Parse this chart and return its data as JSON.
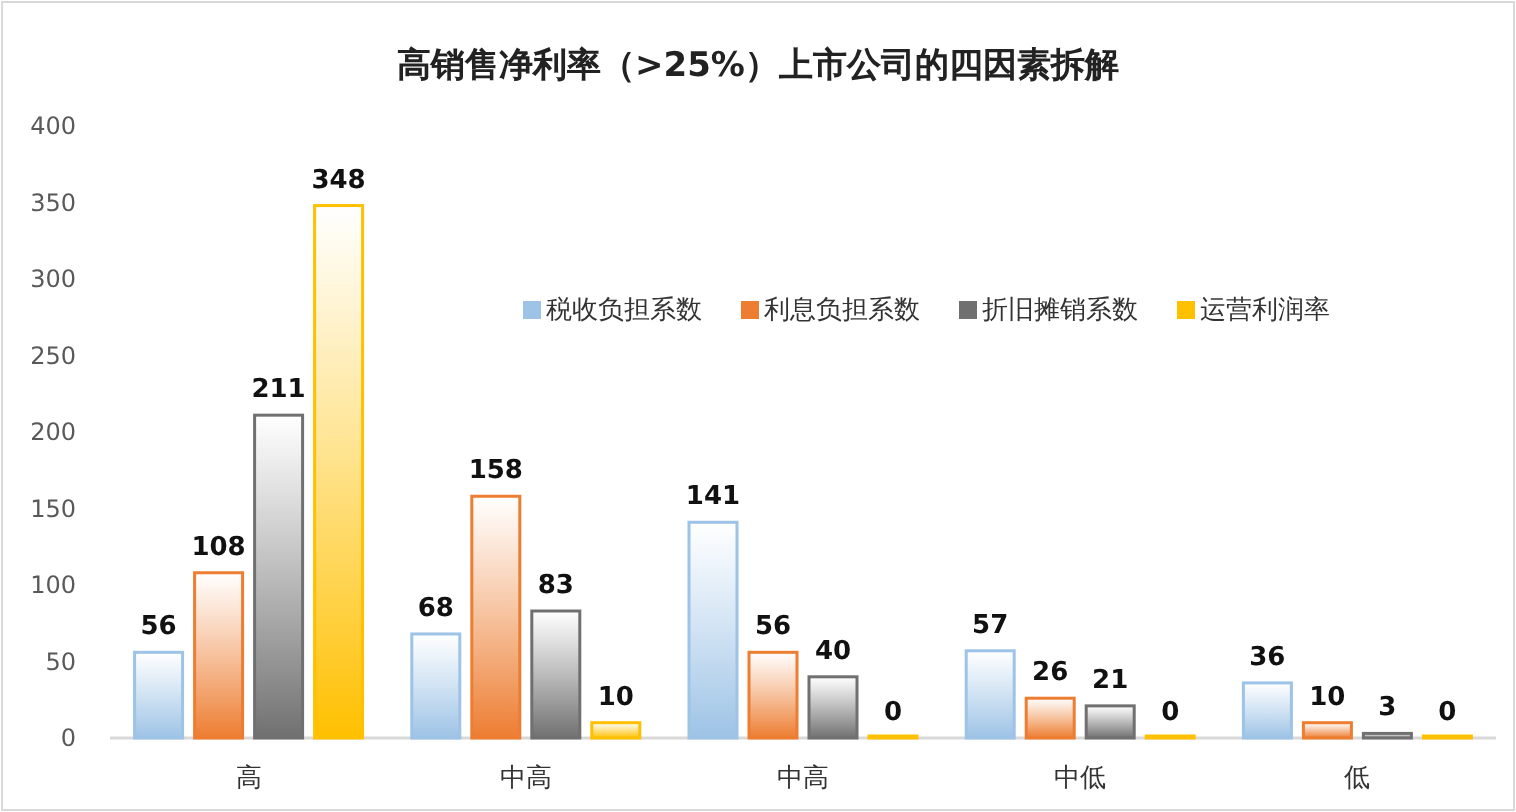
{
  "chart_data": {
    "type": "bar",
    "title": "高销售净利率（>25%）上市公司的四因素拆解",
    "categories": [
      "高",
      "中高",
      "中高",
      "中低",
      "低"
    ],
    "series": [
      {
        "name": "税收负担系数",
        "color": "#9dc3e6",
        "values": [
          56,
          68,
          141,
          57,
          36
        ]
      },
      {
        "name": "利息负担系数",
        "color": "#ed7d31",
        "values": [
          108,
          158,
          56,
          26,
          10
        ]
      },
      {
        "name": "折旧摊销系数",
        "color": "#707070",
        "values": [
          211,
          83,
          40,
          21,
          3
        ]
      },
      {
        "name": "运营利润率",
        "color": "#ffc000",
        "values": [
          348,
          10,
          0,
          0,
          0
        ]
      }
    ],
    "ylim": [
      0,
      400
    ],
    "yticks": [
      0,
      50,
      100,
      150,
      200,
      250,
      300,
      350,
      400
    ],
    "data_labels": true,
    "legend": "top right",
    "grid": false
  }
}
